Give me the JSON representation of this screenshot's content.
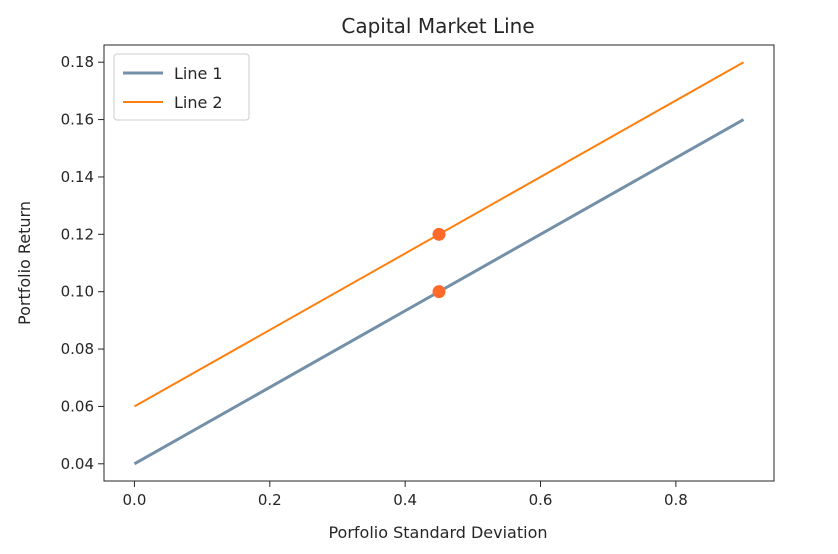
{
  "chart_data": {
    "type": "line",
    "title": "Capital Market Line",
    "xlabel": "Porfolio Standard Deviation",
    "ylabel": "Portfolio Return",
    "xlim": [
      -0.045,
      0.945
    ],
    "ylim": [
      0.034,
      0.186
    ],
    "xticks": [
      0.0,
      0.2,
      0.4,
      0.6,
      0.8
    ],
    "xtick_labels": [
      "0.0",
      "0.2",
      "0.4",
      "0.6",
      "0.8"
    ],
    "yticks": [
      0.04,
      0.06,
      0.08,
      0.1,
      0.12,
      0.14,
      0.16,
      0.18
    ],
    "ytick_labels": [
      "0.04",
      "0.06",
      "0.08",
      "0.10",
      "0.12",
      "0.14",
      "0.16",
      "0.18"
    ],
    "grid": false,
    "legend_position": "top-left",
    "series": [
      {
        "name": "Line 1",
        "x": [
          0.0,
          0.9
        ],
        "y": [
          0.04,
          0.16
        ],
        "color": "#7390a8",
        "line_weight": "thick"
      },
      {
        "name": "Line 2",
        "x": [
          0.0,
          0.9
        ],
        "y": [
          0.06,
          0.18
        ],
        "color": "#ff7f0e",
        "line_weight": "thin"
      }
    ],
    "points": [
      {
        "x": 0.45,
        "y": 0.1,
        "color": "#ff6a2a"
      },
      {
        "x": 0.45,
        "y": 0.12,
        "color": "#ff6a2a"
      }
    ]
  }
}
